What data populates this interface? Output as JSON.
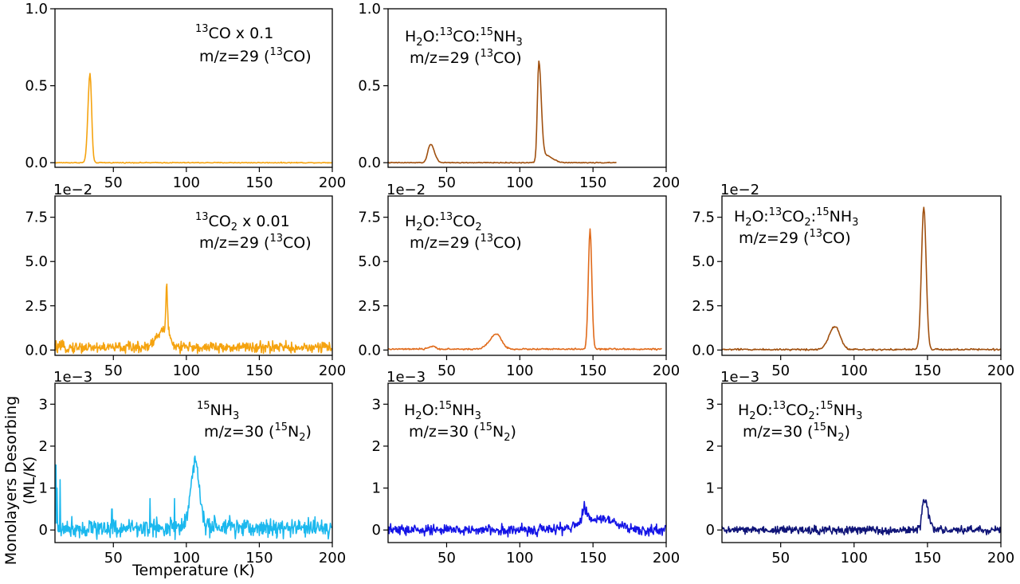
{
  "figure": {
    "ylabel_line1": "Monolayers Desorbing",
    "ylabel_line2": "(ML/K)",
    "xlabel": "Temperature (K)"
  },
  "chart_data": [
    {
      "id": "p1",
      "type": "line",
      "color": "#f5a30f",
      "xlim": [
        10,
        200
      ],
      "ylim": [
        -0.03,
        1.0
      ],
      "xticks": [
        50,
        100,
        150,
        200
      ],
      "xtick_labels": [
        "50",
        "100",
        "150",
        "200"
      ],
      "yticks": [
        0.0,
        0.5,
        1.0
      ],
      "ytick_labels": [
        "0.0",
        "0.5",
        "1.0"
      ],
      "scale_label": "",
      "annotation": {
        "line1": {
          "sup1": "13",
          "text1": "CO x 0.1"
        },
        "line2": {
          "pre": "m/z=29 (",
          "sup": "13",
          "post": "CO)"
        }
      },
      "x_end": 200,
      "peaks": [
        {
          "center": 34,
          "height": 0.58,
          "sigma_left": 1.4,
          "sigma_right": 1.1
        }
      ],
      "baseline": 0.0,
      "noise": 0.002,
      "spike_extra": []
    },
    {
      "id": "p2",
      "type": "line",
      "color": "#a0500f",
      "xlim": [
        10,
        200
      ],
      "ylim": [
        -0.03,
        1.0
      ],
      "xticks": [
        50,
        100,
        150,
        200
      ],
      "xtick_labels": [
        "50",
        "100",
        "150",
        "200"
      ],
      "yticks": [
        0.0,
        0.5,
        1.0
      ],
      "ytick_labels": [
        "0.0",
        "0.5",
        "1.0"
      ],
      "scale_label": "",
      "annotation": {
        "line1": {
          "a": "H",
          "sub_a": "2",
          "b": "O:",
          "sup_b": "13",
          "c": "CO:",
          "sup_c": "15",
          "d": "NH",
          "sub_d": "3"
        },
        "line2": {
          "pre": "m/z=29 (",
          "sup": "13",
          "post": "CO)"
        }
      },
      "x_end": 166,
      "peaks": [
        {
          "center": 39,
          "height": 0.12,
          "sigma_left": 1.8,
          "sigma_right": 2.6
        },
        {
          "center": 113,
          "height": 0.64,
          "sigma_left": 1.0,
          "sigma_right": 1.6
        },
        {
          "center": 117,
          "height": 0.05,
          "sigma_left": 3.0,
          "sigma_right": 5.0
        }
      ],
      "baseline": 0.0,
      "noise": 0.002,
      "spike_extra": []
    },
    {
      "id": "p3",
      "type": "line",
      "color": "#f5a30f",
      "xlim": [
        10,
        200
      ],
      "ylim": [
        -0.3,
        8.7
      ],
      "xticks": [
        50,
        100,
        150,
        200
      ],
      "xtick_labels": [
        "50",
        "100",
        "150",
        "200"
      ],
      "yticks": [
        0.0,
        2.5,
        5.0,
        7.5
      ],
      "ytick_labels": [
        "0.0",
        "2.5",
        "5.0",
        "7.5"
      ],
      "scale_label": "1e−2",
      "annotation": {
        "line1": {
          "sup1": "13",
          "text1": "CO",
          "sub1": "2",
          "text2": " x 0.01"
        },
        "line2": {
          "pre": "m/z=29 (",
          "sup": "13",
          "post": "CO)"
        }
      },
      "x_end": 200,
      "peaks": [
        {
          "center": 86,
          "height": 1.0,
          "sigma_left": 6,
          "sigma_right": 3
        },
        {
          "center": 86.5,
          "height": 2.4,
          "sigma_left": 0.6,
          "sigma_right": 0.6
        }
      ],
      "baseline": 0.15,
      "noise": 0.22,
      "spike_extra": []
    },
    {
      "id": "p4",
      "type": "line",
      "color": "#e06a1a",
      "xlim": [
        10,
        200
      ],
      "ylim": [
        -0.3,
        8.7
      ],
      "xticks": [
        50,
        100,
        150,
        200
      ],
      "xtick_labels": [
        "50",
        "100",
        "150",
        "200"
      ],
      "yticks": [
        0.0,
        2.5,
        5.0,
        7.5
      ],
      "ytick_labels": [
        "0.0",
        "2.5",
        "5.0",
        "7.5"
      ],
      "scale_label": "1e−2",
      "annotation": {
        "line1": {
          "a": "H",
          "sub_a": "2",
          "b": "O:",
          "sup_b": "13",
          "c": "CO",
          "sub_c": "2"
        },
        "line2": {
          "pre": "m/z=29 (",
          "sup": "13",
          "post": "CO)"
        }
      },
      "x_end": 197,
      "peaks": [
        {
          "center": 40,
          "height": 0.15,
          "sigma_left": 2.5,
          "sigma_right": 2.5
        },
        {
          "center": 84,
          "height": 0.85,
          "sigma_left": 4.5,
          "sigma_right": 3.5
        },
        {
          "center": 148,
          "height": 6.75,
          "sigma_left": 1.2,
          "sigma_right": 1.2
        }
      ],
      "baseline": 0.05,
      "noise": 0.03,
      "spike_extra": []
    },
    {
      "id": "p5",
      "type": "line",
      "color": "#a0500f",
      "xlim": [
        10,
        200
      ],
      "ylim": [
        -0.3,
        8.7
      ],
      "xticks": [
        50,
        100,
        150,
        200
      ],
      "xtick_labels": [
        "50",
        "100",
        "150",
        "200"
      ],
      "yticks": [
        0.0,
        2.5,
        5.0,
        7.5
      ],
      "ytick_labels": [
        "0.0",
        "2.5",
        "5.0",
        "7.5"
      ],
      "scale_label": "1e−2",
      "annotation": {
        "line1": {
          "a": "H",
          "sub_a": "2",
          "b": "O:",
          "sup_b": "13",
          "c": "CO",
          "sub_c": "2",
          "c2": ":",
          "sup_d": "15",
          "d": "NH",
          "sub_d": "3"
        },
        "line2": {
          "pre": "m/z=29 (",
          "sup": "13",
          "post": "CO)"
        }
      },
      "x_end": 200,
      "peaks": [
        {
          "center": 87,
          "height": 1.3,
          "sigma_left": 4.0,
          "sigma_right": 3.5
        },
        {
          "center": 147.5,
          "height": 8.05,
          "sigma_left": 1.6,
          "sigma_right": 1.6
        }
      ],
      "baseline": 0.03,
      "noise": 0.035,
      "spike_extra": []
    },
    {
      "id": "p6",
      "type": "line",
      "color": "#1bb8ee",
      "xlim": [
        10,
        200
      ],
      "ylim": [
        -0.3,
        3.5
      ],
      "xticks": [
        50,
        100,
        150,
        200
      ],
      "xtick_labels": [
        "50",
        "100",
        "150",
        "200"
      ],
      "yticks": [
        0,
        1,
        2,
        3
      ],
      "ytick_labels": [
        "0",
        "1",
        "2",
        "3"
      ],
      "scale_label": "1e−3",
      "annotation": {
        "line1": {
          "sup1": "15",
          "text1": "NH",
          "sub1": "3"
        },
        "line2": {
          "pre": "m/z=30 (",
          "sup": "15",
          "post": "N",
          "sub": "2",
          "post2": ")"
        }
      },
      "x_end": 200,
      "peaks": [
        {
          "center": 106,
          "height": 1.55,
          "sigma_left": 3.0,
          "sigma_right": 3.0
        }
      ],
      "baseline": 0.05,
      "noise": 0.16,
      "spike_extra": [
        {
          "x": 10.5,
          "y": 1.55
        },
        {
          "x": 11.5,
          "y": 1.0
        },
        {
          "x": 13.5,
          "y": 1.2
        },
        {
          "x": 49,
          "y": 0.5
        },
        {
          "x": 75,
          "y": 0.75
        },
        {
          "x": 92,
          "y": 0.75
        }
      ]
    },
    {
      "id": "p7",
      "type": "line",
      "color": "#1414e6",
      "xlim": [
        10,
        200
      ],
      "ylim": [
        -0.3,
        3.5
      ],
      "xticks": [
        50,
        100,
        150,
        200
      ],
      "xtick_labels": [
        "50",
        "100",
        "150",
        "200"
      ],
      "yticks": [
        0,
        1,
        2,
        3
      ],
      "ytick_labels": [
        "0",
        "1",
        "2",
        "3"
      ],
      "scale_label": "1e−3",
      "annotation": {
        "line1": {
          "a": "H",
          "sub_a": "2",
          "b": "O:",
          "sup_b": "15",
          "c": "NH",
          "sub_c": "3"
        },
        "line2": {
          "pre": "m/z=30 (",
          "sup": "15",
          "post": "N",
          "sub": "2",
          "post2": ")"
        }
      },
      "x_end": 200,
      "peaks": [
        {
          "center": 144,
          "height": 0.35,
          "sigma_left": 1.5,
          "sigma_right": 2
        },
        {
          "center": 158,
          "height": 0.28,
          "sigma_left": 14,
          "sigma_right": 8
        }
      ],
      "baseline": 0.0,
      "noise": 0.09,
      "spike_extra": [
        {
          "x": 144,
          "y": 0.68
        }
      ]
    },
    {
      "id": "p8",
      "type": "line",
      "color": "#0f1478",
      "xlim": [
        10,
        200
      ],
      "ylim": [
        -0.3,
        3.5
      ],
      "xticks": [
        50,
        100,
        150,
        200
      ],
      "xtick_labels": [
        "50",
        "100",
        "150",
        "200"
      ],
      "yticks": [
        0,
        1,
        2,
        3
      ],
      "ytick_labels": [
        "0",
        "1",
        "2",
        "3"
      ],
      "scale_label": "1e−3",
      "annotation": {
        "line1": {
          "a": "H",
          "sub_a": "2",
          "b": "O:",
          "sup_b": "13",
          "c": "CO",
          "sub_c": "2",
          "c2": ":",
          "sup_d": "15",
          "d": "NH",
          "sub_d": "3"
        },
        "line2": {
          "pre": "m/z=30 (",
          "sup": "15",
          "post": "N",
          "sub": "2",
          "post2": ")"
        }
      },
      "x_end": 200,
      "peaks": [
        {
          "center": 148,
          "height": 0.72,
          "sigma_left": 1.6,
          "sigma_right": 2.4
        }
      ],
      "baseline": 0.0,
      "noise": 0.07,
      "spike_extra": []
    }
  ]
}
